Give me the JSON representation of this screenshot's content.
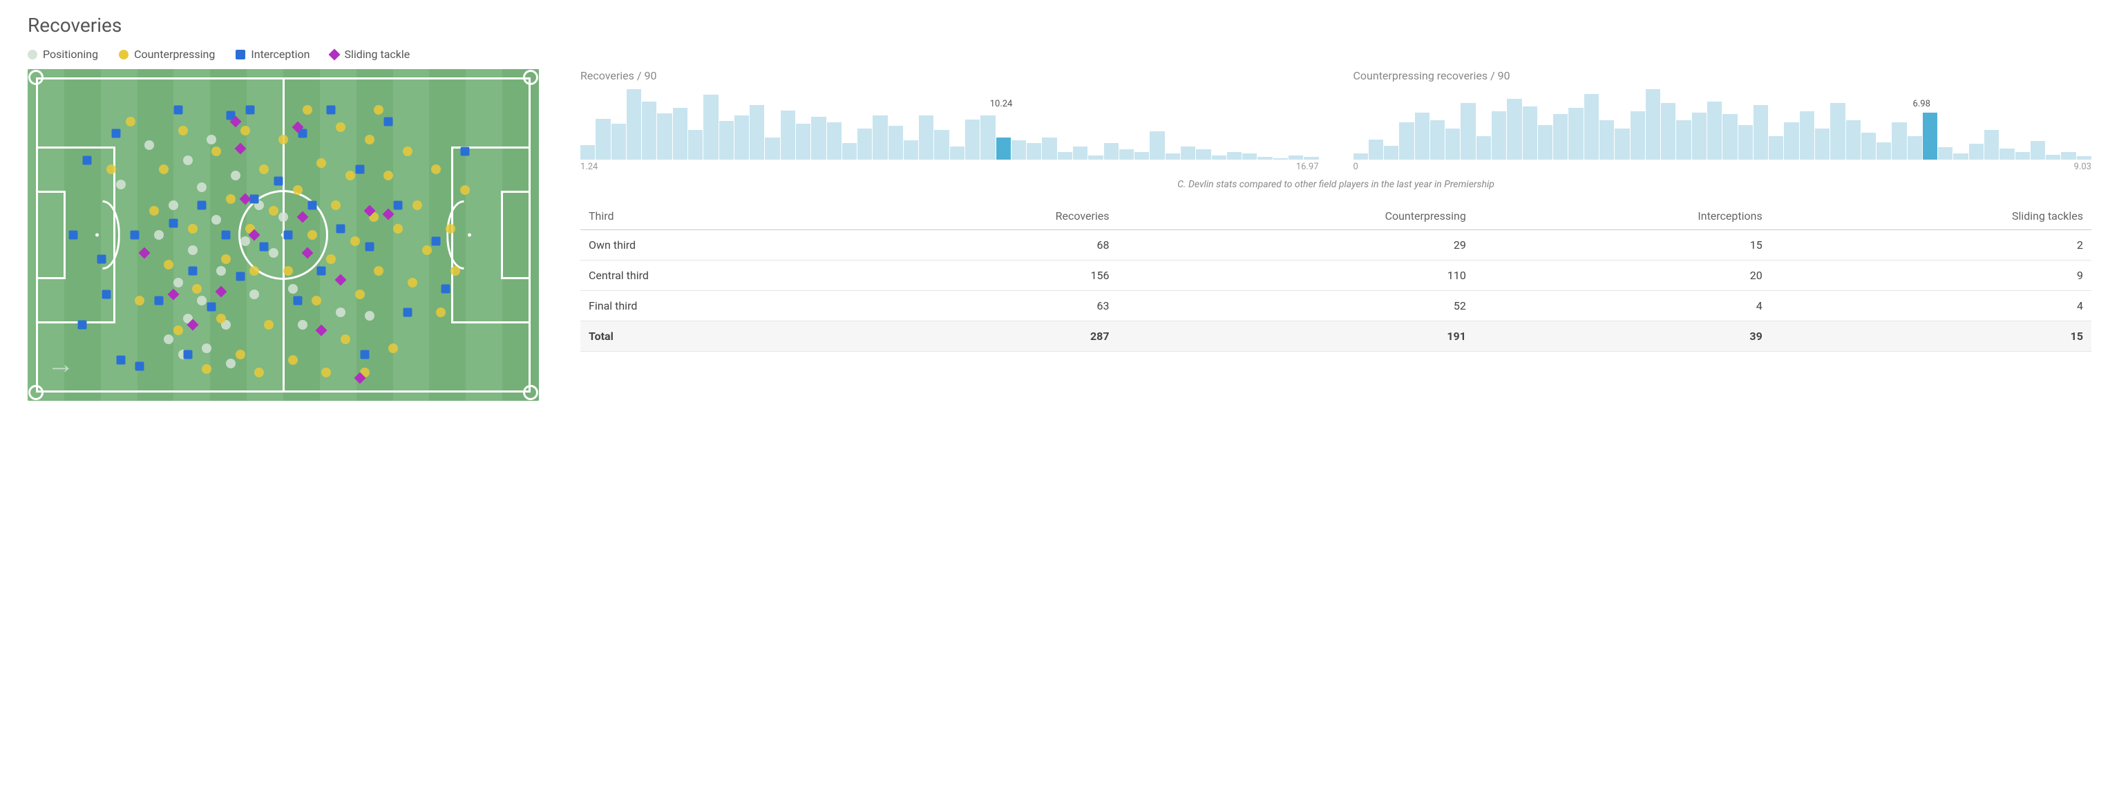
{
  "title": "Recoveries",
  "legend": [
    {
      "label": "Positioning",
      "shape": "circle",
      "color": "#d6e3d7"
    },
    {
      "label": "Counterpressing",
      "shape": "circle",
      "color": "#e9c93a"
    },
    {
      "label": "Interception",
      "shape": "square",
      "color": "#2a6fd6"
    },
    {
      "label": "Sliding tackle",
      "shape": "diamond",
      "color": "#b02fc0"
    }
  ],
  "pitch": {
    "field_color_a": "#7fb882",
    "field_color_b": "#76b079",
    "line_color": "#ffffff",
    "stripes": 14,
    "direction_arrow": "→",
    "markers": [
      {
        "t": "positioning",
        "x": 16,
        "y": 33
      },
      {
        "t": "positioning",
        "x": 22,
        "y": 20
      },
      {
        "t": "positioning",
        "x": 24,
        "y": 50
      },
      {
        "t": "positioning",
        "x": 27,
        "y": 40
      },
      {
        "t": "positioning",
        "x": 28,
        "y": 66
      },
      {
        "t": "positioning",
        "x": 30,
        "y": 25
      },
      {
        "t": "positioning",
        "x": 30,
        "y": 78
      },
      {
        "t": "positioning",
        "x": 31,
        "y": 55
      },
      {
        "t": "positioning",
        "x": 33,
        "y": 34
      },
      {
        "t": "positioning",
        "x": 33,
        "y": 72
      },
      {
        "t": "positioning",
        "x": 34,
        "y": 88
      },
      {
        "t": "positioning",
        "x": 35,
        "y": 18
      },
      {
        "t": "positioning",
        "x": 36,
        "y": 45
      },
      {
        "t": "positioning",
        "x": 37,
        "y": 62
      },
      {
        "t": "positioning",
        "x": 38,
        "y": 80
      },
      {
        "t": "positioning",
        "x": 40,
        "y": 30
      },
      {
        "t": "positioning",
        "x": 42,
        "y": 52
      },
      {
        "t": "positioning",
        "x": 44,
        "y": 70
      },
      {
        "t": "positioning",
        "x": 45,
        "y": 40
      },
      {
        "t": "positioning",
        "x": 48,
        "y": 56
      },
      {
        "t": "positioning",
        "x": 50,
        "y": 44
      },
      {
        "t": "positioning",
        "x": 52,
        "y": 68
      },
      {
        "t": "positioning",
        "x": 54,
        "y": 80
      },
      {
        "t": "positioning",
        "x": 62,
        "y": 76
      },
      {
        "t": "positioning",
        "x": 68,
        "y": 77
      },
      {
        "t": "positioning",
        "x": 29,
        "y": 90
      },
      {
        "t": "positioning",
        "x": 26,
        "y": 85
      },
      {
        "t": "positioning",
        "x": 39,
        "y": 93
      },
      {
        "t": "counterpressing",
        "x": 14,
        "y": 28
      },
      {
        "t": "counterpressing",
        "x": 18,
        "y": 12
      },
      {
        "t": "counterpressing",
        "x": 20,
        "y": 72
      },
      {
        "t": "counterpressing",
        "x": 23,
        "y": 42
      },
      {
        "t": "counterpressing",
        "x": 25,
        "y": 28
      },
      {
        "t": "counterpressing",
        "x": 26,
        "y": 60
      },
      {
        "t": "counterpressing",
        "x": 28,
        "y": 82
      },
      {
        "t": "counterpressing",
        "x": 29,
        "y": 15
      },
      {
        "t": "counterpressing",
        "x": 31,
        "y": 48
      },
      {
        "t": "counterpressing",
        "x": 32,
        "y": 68
      },
      {
        "t": "counterpressing",
        "x": 34,
        "y": 95
      },
      {
        "t": "counterpressing",
        "x": 36,
        "y": 22
      },
      {
        "t": "counterpressing",
        "x": 37,
        "y": 78
      },
      {
        "t": "counterpressing",
        "x": 38,
        "y": 58
      },
      {
        "t": "counterpressing",
        "x": 39,
        "y": 38
      },
      {
        "t": "counterpressing",
        "x": 41,
        "y": 90
      },
      {
        "t": "counterpressing",
        "x": 42,
        "y": 15
      },
      {
        "t": "counterpressing",
        "x": 43,
        "y": 48
      },
      {
        "t": "counterpressing",
        "x": 44,
        "y": 62
      },
      {
        "t": "counterpressing",
        "x": 46,
        "y": 28
      },
      {
        "t": "counterpressing",
        "x": 47,
        "y": 80
      },
      {
        "t": "counterpressing",
        "x": 48,
        "y": 42
      },
      {
        "t": "counterpressing",
        "x": 50,
        "y": 18
      },
      {
        "t": "counterpressing",
        "x": 51,
        "y": 62
      },
      {
        "t": "counterpressing",
        "x": 52,
        "y": 92
      },
      {
        "t": "counterpressing",
        "x": 53,
        "y": 35
      },
      {
        "t": "counterpressing",
        "x": 55,
        "y": 8
      },
      {
        "t": "counterpressing",
        "x": 56,
        "y": 50
      },
      {
        "t": "counterpressing",
        "x": 57,
        "y": 72
      },
      {
        "t": "counterpressing",
        "x": 58,
        "y": 26
      },
      {
        "t": "counterpressing",
        "x": 60,
        "y": 58
      },
      {
        "t": "counterpressing",
        "x": 61,
        "y": 40
      },
      {
        "t": "counterpressing",
        "x": 62,
        "y": 14
      },
      {
        "t": "counterpressing",
        "x": 63,
        "y": 85
      },
      {
        "t": "counterpressing",
        "x": 64,
        "y": 30
      },
      {
        "t": "counterpressing",
        "x": 65,
        "y": 52
      },
      {
        "t": "counterpressing",
        "x": 66,
        "y": 70
      },
      {
        "t": "counterpressing",
        "x": 68,
        "y": 18
      },
      {
        "t": "counterpressing",
        "x": 69,
        "y": 44
      },
      {
        "t": "counterpressing",
        "x": 70,
        "y": 62
      },
      {
        "t": "counterpressing",
        "x": 72,
        "y": 30
      },
      {
        "t": "counterpressing",
        "x": 73,
        "y": 88
      },
      {
        "t": "counterpressing",
        "x": 74,
        "y": 48
      },
      {
        "t": "counterpressing",
        "x": 76,
        "y": 22
      },
      {
        "t": "counterpressing",
        "x": 77,
        "y": 66
      },
      {
        "t": "counterpressing",
        "x": 78,
        "y": 40
      },
      {
        "t": "counterpressing",
        "x": 80,
        "y": 55
      },
      {
        "t": "counterpressing",
        "x": 82,
        "y": 28
      },
      {
        "t": "counterpressing",
        "x": 83,
        "y": 76
      },
      {
        "t": "counterpressing",
        "x": 85,
        "y": 48
      },
      {
        "t": "counterpressing",
        "x": 86,
        "y": 62
      },
      {
        "t": "counterpressing",
        "x": 88,
        "y": 35
      },
      {
        "t": "counterpressing",
        "x": 67,
        "y": 96
      },
      {
        "t": "counterpressing",
        "x": 59,
        "y": 96
      },
      {
        "t": "counterpressing",
        "x": 45,
        "y": 96
      },
      {
        "t": "counterpressing",
        "x": 70,
        "y": 8
      },
      {
        "t": "interception",
        "x": 6,
        "y": 50
      },
      {
        "t": "interception",
        "x": 8,
        "y": 80
      },
      {
        "t": "interception",
        "x": 9,
        "y": 25
      },
      {
        "t": "interception",
        "x": 12,
        "y": 58
      },
      {
        "t": "interception",
        "x": 15,
        "y": 16
      },
      {
        "t": "interception",
        "x": 16,
        "y": 92
      },
      {
        "t": "interception",
        "x": 19,
        "y": 50
      },
      {
        "t": "interception",
        "x": 20,
        "y": 94
      },
      {
        "t": "interception",
        "x": 24,
        "y": 72
      },
      {
        "t": "interception",
        "x": 27,
        "y": 46
      },
      {
        "t": "interception",
        "x": 28,
        "y": 8
      },
      {
        "t": "interception",
        "x": 30,
        "y": 90
      },
      {
        "t": "interception",
        "x": 31,
        "y": 62
      },
      {
        "t": "interception",
        "x": 33,
        "y": 40
      },
      {
        "t": "interception",
        "x": 35,
        "y": 74
      },
      {
        "t": "interception",
        "x": 38,
        "y": 50
      },
      {
        "t": "interception",
        "x": 39,
        "y": 10
      },
      {
        "t": "interception",
        "x": 41,
        "y": 64
      },
      {
        "t": "interception",
        "x": 43,
        "y": 8
      },
      {
        "t": "interception",
        "x": 44,
        "y": 38
      },
      {
        "t": "interception",
        "x": 46,
        "y": 54
      },
      {
        "t": "interception",
        "x": 49,
        "y": 32
      },
      {
        "t": "interception",
        "x": 51,
        "y": 50
      },
      {
        "t": "interception",
        "x": 53,
        "y": 72
      },
      {
        "t": "interception",
        "x": 54,
        "y": 16
      },
      {
        "t": "interception",
        "x": 56,
        "y": 40
      },
      {
        "t": "interception",
        "x": 58,
        "y": 62
      },
      {
        "t": "interception",
        "x": 60,
        "y": 8
      },
      {
        "t": "interception",
        "x": 62,
        "y": 48
      },
      {
        "t": "interception",
        "x": 66,
        "y": 28
      },
      {
        "t": "interception",
        "x": 68,
        "y": 54
      },
      {
        "t": "interception",
        "x": 72,
        "y": 12
      },
      {
        "t": "interception",
        "x": 74,
        "y": 40
      },
      {
        "t": "interception",
        "x": 76,
        "y": 76
      },
      {
        "t": "interception",
        "x": 82,
        "y": 52
      },
      {
        "t": "interception",
        "x": 84,
        "y": 68
      },
      {
        "t": "interception",
        "x": 88,
        "y": 22
      },
      {
        "t": "interception",
        "x": 67,
        "y": 90
      },
      {
        "t": "interception",
        "x": 13,
        "y": 70
      },
      {
        "t": "sliding",
        "x": 21,
        "y": 56
      },
      {
        "t": "sliding",
        "x": 27,
        "y": 70
      },
      {
        "t": "sliding",
        "x": 31,
        "y": 80
      },
      {
        "t": "sliding",
        "x": 37,
        "y": 69
      },
      {
        "t": "sliding",
        "x": 40,
        "y": 12
      },
      {
        "t": "sliding",
        "x": 41,
        "y": 21
      },
      {
        "t": "sliding",
        "x": 42,
        "y": 38
      },
      {
        "t": "sliding",
        "x": 44,
        "y": 50
      },
      {
        "t": "sliding",
        "x": 53,
        "y": 14
      },
      {
        "t": "sliding",
        "x": 54,
        "y": 44
      },
      {
        "t": "sliding",
        "x": 55,
        "y": 56
      },
      {
        "t": "sliding",
        "x": 58,
        "y": 82
      },
      {
        "t": "sliding",
        "x": 62,
        "y": 65
      },
      {
        "t": "sliding",
        "x": 68,
        "y": 42
      },
      {
        "t": "sliding",
        "x": 72,
        "y": 43
      },
      {
        "t": "sliding",
        "x": 66,
        "y": 98
      }
    ]
  },
  "marker_styles": {
    "positioning": {
      "shape": "circle",
      "color": "#d6e3d7"
    },
    "counterpressing": {
      "shape": "circle",
      "color": "#e9c93a"
    },
    "interception": {
      "shape": "square",
      "color": "#2a6fd6"
    },
    "sliding": {
      "shape": "diamond",
      "color": "#b02fc0"
    }
  },
  "histograms": [
    {
      "title": "Recoveries / 90",
      "min_label": "1.24",
      "max_label": "16.97",
      "value_label": "10.24",
      "value_pos_pct": 57,
      "bars": [
        20,
        55,
        48,
        95,
        78,
        62,
        70,
        40,
        88,
        52,
        60,
        74,
        30,
        66,
        48,
        58,
        50,
        22,
        42,
        60,
        46,
        26,
        60,
        40,
        18,
        54,
        60,
        30,
        26,
        22,
        30,
        10,
        18,
        6,
        22,
        14,
        10,
        38,
        8,
        18,
        14,
        6,
        10,
        8,
        4,
        2,
        6,
        4
      ],
      "highlight_index": 27,
      "bar_color": "#c8e4ef",
      "highlight_color": "#4fb0d6"
    },
    {
      "title": "Counterpressing recoveries / 90",
      "min_label": "0",
      "max_label": "9.03",
      "value_label": "6.98",
      "value_pos_pct": 77,
      "bars": [
        8,
        26,
        18,
        48,
        60,
        50,
        40,
        72,
        30,
        62,
        78,
        68,
        44,
        58,
        66,
        84,
        50,
        40,
        62,
        90,
        72,
        50,
        60,
        74,
        58,
        44,
        70,
        30,
        48,
        62,
        40,
        72,
        50,
        34,
        22,
        48,
        30,
        60,
        16,
        8,
        20,
        38,
        14,
        10,
        24,
        6,
        10,
        4
      ],
      "highlight_index": 37,
      "bar_color": "#c8e4ef",
      "highlight_color": "#4fb0d6"
    }
  ],
  "comparison_note": "C. Devlin stats compared to other field players in the last year in Premiership",
  "table": {
    "columns": [
      "Third",
      "Recoveries",
      "Counterpressing",
      "Interceptions",
      "Sliding tackles"
    ],
    "rows": [
      [
        "Own third",
        68,
        29,
        15,
        2
      ],
      [
        "Central third",
        156,
        110,
        20,
        9
      ],
      [
        "Final third",
        63,
        52,
        4,
        4
      ]
    ],
    "total": [
      "Total",
      287,
      191,
      39,
      15
    ]
  }
}
